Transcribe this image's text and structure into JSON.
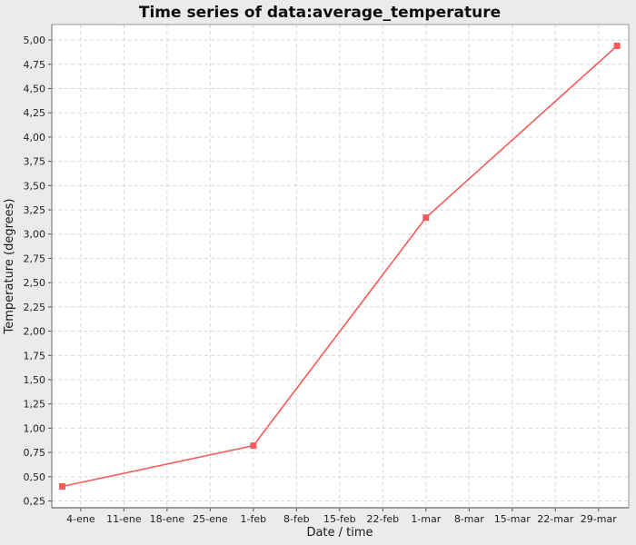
{
  "chart_data": {
    "type": "line",
    "title": "Time series of data:average_temperature",
    "xlabel": "Date / time",
    "ylabel": "Temperature (degrees)",
    "x_tick_labels": [
      "4-ene",
      "11-ene",
      "18-ene",
      "25-ene",
      "1-feb",
      "8-feb",
      "15-feb",
      "22-feb",
      "1-mar",
      "8-mar",
      "15-mar",
      "22-mar",
      "29-mar"
    ],
    "x_tick_days": [
      3,
      10,
      17,
      24,
      31,
      38,
      45,
      52,
      59,
      66,
      73,
      80,
      87
    ],
    "y_tick_labels": [
      "0,25",
      "0,50",
      "0,75",
      "1,00",
      "1,25",
      "1,50",
      "1,75",
      "2,00",
      "2,25",
      "2,50",
      "2,75",
      "3,00",
      "3,25",
      "3,50",
      "3,75",
      "4,00",
      "4,25",
      "4,50",
      "4,75",
      "5,00"
    ],
    "y_tick_values": [
      0.25,
      0.5,
      0.75,
      1.0,
      1.25,
      1.5,
      1.75,
      2.0,
      2.25,
      2.5,
      2.75,
      3.0,
      3.25,
      3.5,
      3.75,
      4.0,
      4.25,
      4.5,
      4.75,
      5.0
    ],
    "xlim_days": [
      -1.7,
      91.9
    ],
    "ylim": [
      0.18,
      5.16
    ],
    "grid": true,
    "legend": "none",
    "series": [
      {
        "name": "average_temperature",
        "color": "#fa5a5a",
        "marker": "square",
        "x_dates": [
          "1-ene",
          "1-feb",
          "1-mar",
          "1-abr"
        ],
        "x_days": [
          0,
          31,
          59,
          90
        ],
        "values": [
          0.4,
          0.82,
          3.17,
          4.94
        ]
      }
    ],
    "colors": {
      "background": "#ebebeb",
      "plot_background": "#ffffff",
      "grid": "#d8d8d8",
      "frame": "#999999",
      "tick": "#555555",
      "series": "#fa5a5a"
    }
  }
}
